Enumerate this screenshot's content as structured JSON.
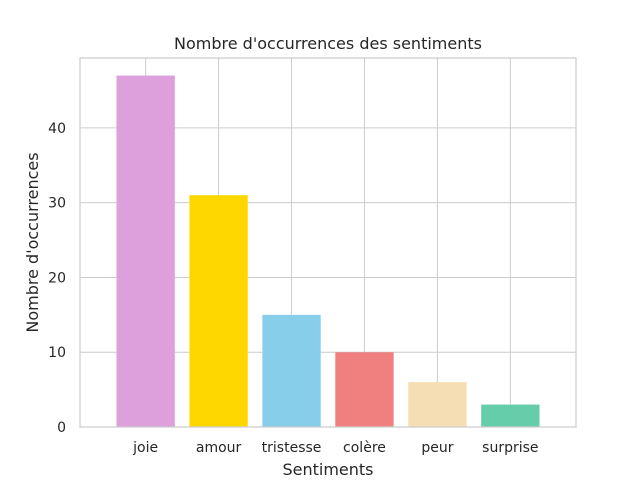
{
  "chart_data": {
    "type": "bar",
    "title": "Nombre d'occurrences des sentiments",
    "xlabel": "Sentiments",
    "ylabel": "Nombre d'occurrences",
    "categories": [
      "joie",
      "amour",
      "tristesse",
      "colère",
      "peur",
      "surprise"
    ],
    "values": [
      47,
      31,
      15,
      10,
      6,
      3
    ],
    "colors": [
      "#DDA0DD",
      "#FFD700",
      "#87CEEB",
      "#F08080",
      "#F5DEB3",
      "#66CDAA"
    ],
    "yticks": [
      0,
      10,
      20,
      30,
      40
    ],
    "ylim": [
      0,
      49.35
    ],
    "grid": true
  }
}
